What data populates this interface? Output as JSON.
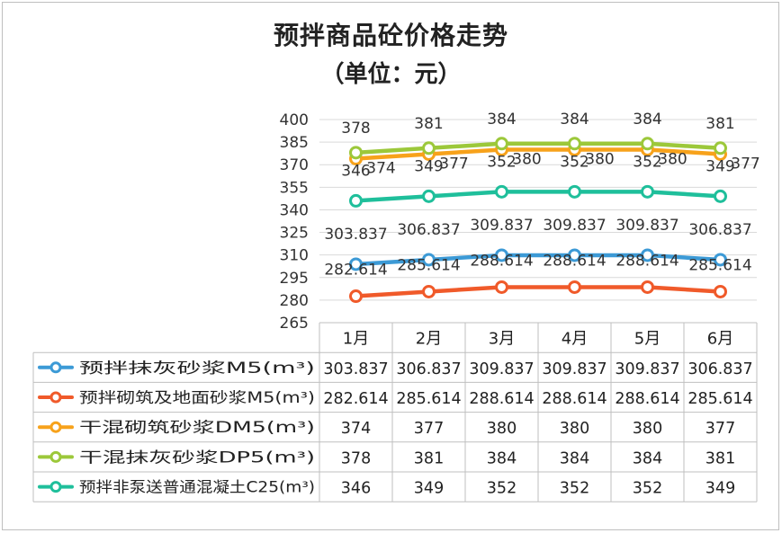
{
  "chart_data": {
    "type": "line",
    "title": "预拌商品砼价格走势",
    "subtitle": "（单位：元）",
    "categories": [
      "1月",
      "2月",
      "3月",
      "4月",
      "5月",
      "6月"
    ],
    "ylim": [
      265,
      400
    ],
    "yticks": [
      "400",
      "385",
      "370",
      "355",
      "340",
      "325",
      "310",
      "295",
      "280",
      "265"
    ],
    "grid": true,
    "legend": "table-below",
    "series": [
      {
        "name": "预拌抹灰砂浆M5(m³)",
        "color": "#3c9ad6",
        "values": [
          303.837,
          306.837,
          309.837,
          309.837,
          309.837,
          306.837
        ],
        "labels": [
          "303.837",
          "306.837",
          "309.837",
          "309.837",
          "309.837",
          "306.837"
        ]
      },
      {
        "name": "预拌砌筑及地面砂浆M5(m³)",
        "color": "#f05a2a",
        "values": [
          282.614,
          285.614,
          288.614,
          288.614,
          288.614,
          285.614
        ],
        "labels": [
          "282.614",
          "285.614",
          "288.614",
          "288.614",
          "288.614",
          "285.614"
        ]
      },
      {
        "name": "干混砌筑砂浆DM5(m³)",
        "color": "#f7a21b",
        "values": [
          374,
          377,
          380,
          380,
          380,
          377
        ],
        "labels": [
          "374",
          "377",
          "380",
          "380",
          "380",
          "377"
        ]
      },
      {
        "name": "干混抹灰砂浆DP5(m³)",
        "color": "#9cc83a",
        "values": [
          378,
          381,
          384,
          384,
          384,
          381
        ],
        "labels": [
          "378",
          "381",
          "384",
          "384",
          "384",
          "381"
        ]
      },
      {
        "name": "预拌非泵送普通混凝土C25(m³)",
        "color": "#1fbf9b",
        "values": [
          346,
          349,
          352,
          352,
          352,
          349
        ],
        "labels": [
          "346",
          "349",
          "352",
          "352",
          "352",
          "349"
        ]
      }
    ]
  }
}
